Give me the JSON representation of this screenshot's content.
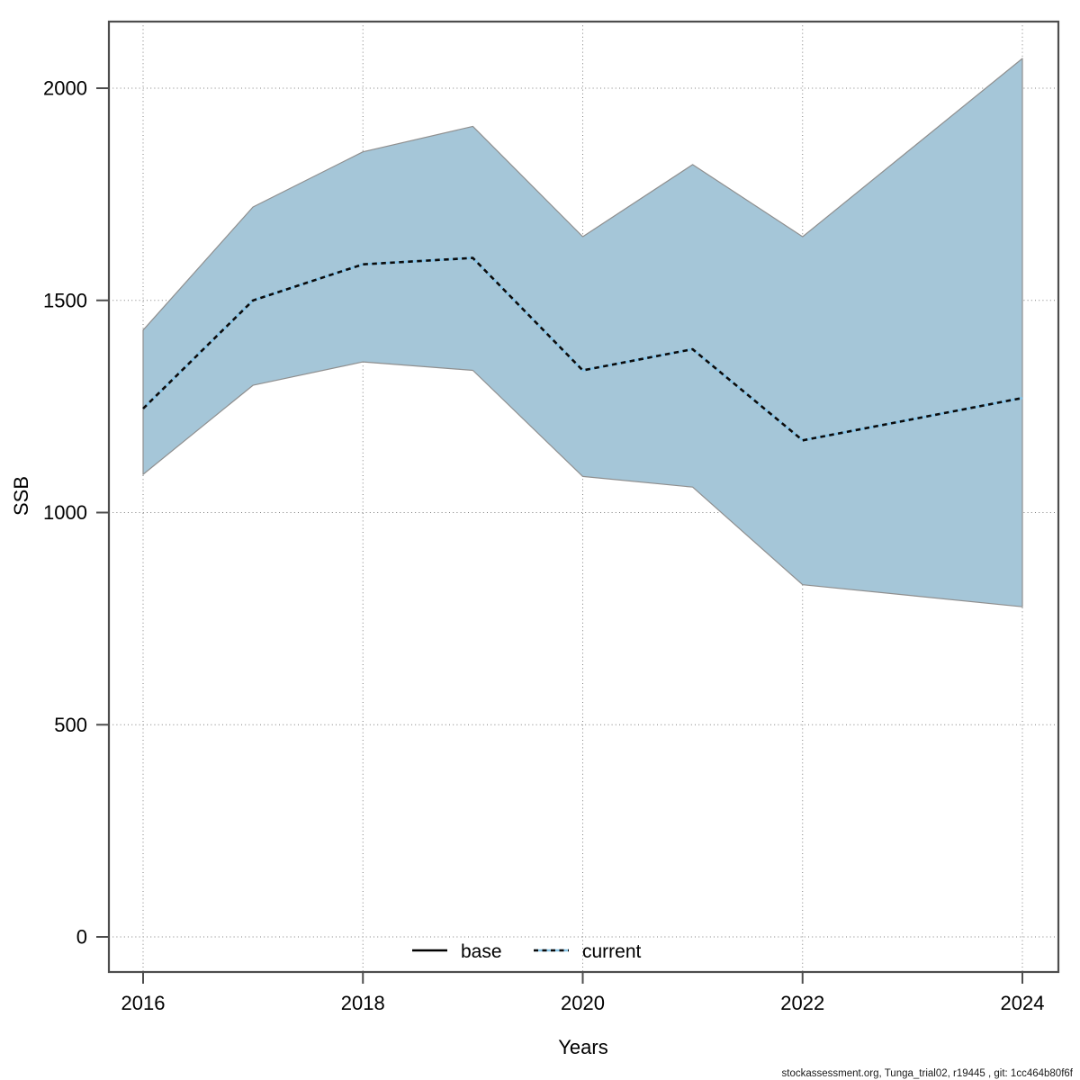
{
  "chart_data": {
    "type": "area",
    "title": "",
    "xlabel": "Years",
    "ylabel": "SSB",
    "grid": true,
    "x": [
      2016,
      2017,
      2018,
      2019,
      2020,
      2021,
      2022,
      2023,
      2024
    ],
    "x_ticks": [
      2016,
      2018,
      2020,
      2022,
      2024
    ],
    "x_tick_labels": [
      "2016",
      "2018",
      "2020",
      "2022",
      "2024"
    ],
    "y_ticks": [
      0,
      500,
      1000,
      1500,
      2000
    ],
    "y_tick_labels": [
      "0",
      "500",
      "1000",
      "1500",
      "2000"
    ],
    "xlim": [
      2015.7,
      2024.35
    ],
    "ylim": [
      -90,
      2180
    ],
    "series": [
      {
        "name": "current",
        "type": "line",
        "line_style": "dashed-over-solid",
        "dash_color": "#0b0b0b",
        "underlay_color": "#86c3e6",
        "values": [
          1245,
          1500,
          1585,
          1600,
          1335,
          1385,
          1170,
          1220,
          1270
        ]
      }
    ],
    "band": {
      "series": "current",
      "label": "uncertainty-band",
      "fill": "#a5c6d8",
      "edge_color": "#8f8f8f",
      "upper": [
        1430,
        1720,
        1850,
        1910,
        1650,
        1820,
        1650,
        1860,
        2070
      ],
      "lower": [
        1090,
        1300,
        1355,
        1335,
        1085,
        1060,
        830,
        804,
        778
      ]
    },
    "legend": {
      "position": "bottom-center-inside",
      "entries": [
        {
          "label": "base",
          "line_style": "solid",
          "line_color": "#000000"
        },
        {
          "label": "current",
          "line_style": "dashed",
          "line_color": "#2a6f9e"
        }
      ]
    }
  },
  "footer": {
    "credit": "stockassessment.org, Tunga_trial02, r19445 , git: 1cc464b80f6f"
  },
  "colors": {
    "band_fill": "#a5c6d8",
    "band_edge": "#8f8f8f",
    "current_dash": "#0b0b0b",
    "current_underlay": "#86c3e6",
    "gridline": "#7f7f7f",
    "axis": "#4d4d4d",
    "text": "#000000",
    "background": "#ffffff"
  }
}
